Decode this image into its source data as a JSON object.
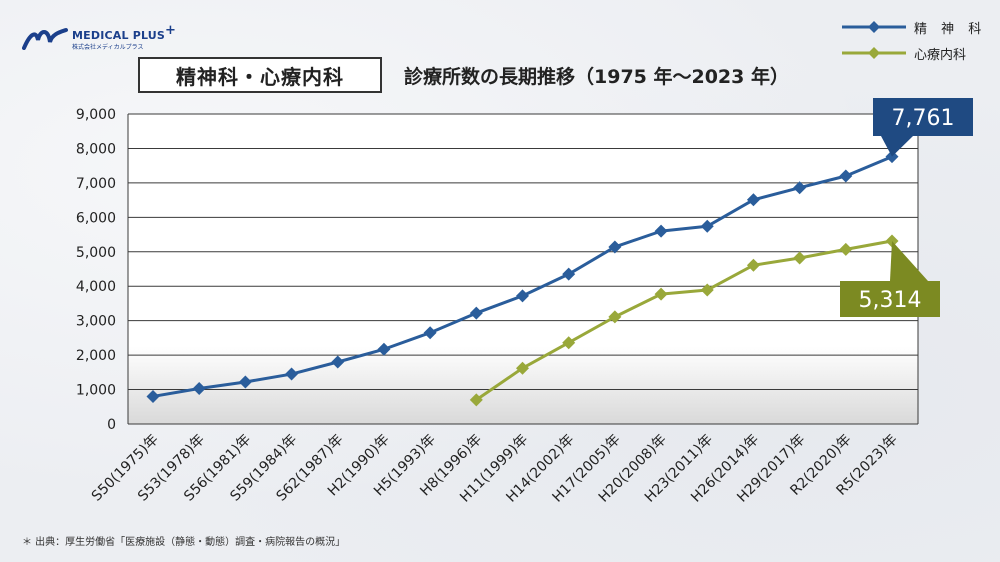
{
  "logo": {
    "brand": "MEDICAL PLUS",
    "sub": "株式会社メディカルプラス",
    "icon": "medical-plus-logo"
  },
  "title": "精神科・心療内科",
  "subtitle": "診療所数の長期推移（1975 年～2023 年）",
  "footnote": "＊ 出典：厚生労働省「医療施設（静態・動態）調査・病院報告の概況」",
  "colors": {
    "psychiatry": "#2a5d9b",
    "psychosomatic": "#99a83a",
    "callout_psychiatry": "#1f4a82",
    "callout_psychosomatic": "#7c8a22"
  },
  "chart_data": {
    "type": "line",
    "categories": [
      "S50(1975)年",
      "S53(1978)年",
      "S56(1981)年",
      "S59(1984)年",
      "S62(1987)年",
      "H2(1990)年",
      "H5(1993)年",
      "H8(1996)年",
      "H11(1999)年",
      "H14(2002)年",
      "H17(2005)年",
      "H20(2008)年",
      "H23(2011)年",
      "H26(2014)年",
      "H29(2017)年",
      "R2(2020)年",
      "R5(2023)年"
    ],
    "yticks": [
      "0",
      "1,000",
      "2,000",
      "3,000",
      "4,000",
      "5,000",
      "6,000",
      "7,000",
      "8,000",
      "9,000"
    ],
    "ylim": [
      0,
      9000
    ],
    "grid": true,
    "legend_position": "top-right",
    "series": [
      {
        "name": "精 神 科",
        "marker": "diamond",
        "values": [
          800,
          1030,
          1220,
          1450,
          1800,
          2170,
          2650,
          3220,
          3720,
          4350,
          5140,
          5600,
          5740,
          6510,
          6860,
          7200,
          7761
        ]
      },
      {
        "name": "心療内科",
        "marker": "diamond",
        "values": [
          null,
          null,
          null,
          null,
          null,
          null,
          null,
          700,
          1620,
          2360,
          3110,
          3770,
          3890,
          4610,
          4820,
          5070,
          5314
        ]
      }
    ],
    "annotations": [
      {
        "series": 0,
        "text": "7,761"
      },
      {
        "series": 1,
        "text": "5,314"
      }
    ]
  }
}
